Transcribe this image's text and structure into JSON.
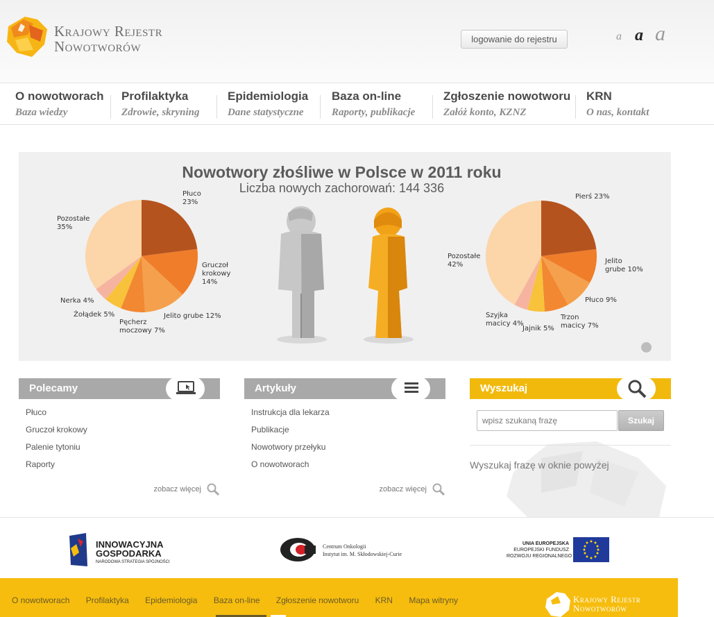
{
  "brand": {
    "line1": "Krajowy Rejestr",
    "line2": "Nowotworów"
  },
  "header": {
    "login_label": "logowanie do rejestru",
    "font_sizes": [
      "a",
      "a",
      "a"
    ]
  },
  "nav": [
    {
      "title": "O nowotworach",
      "subtitle": "Baza wiedzy"
    },
    {
      "title": "Profilaktyka",
      "subtitle": "Zdrowie, skryning"
    },
    {
      "title": "Epidemiologia",
      "subtitle": "Dane statystyczne"
    },
    {
      "title": "Baza on-line",
      "subtitle": "Raporty, publikacje"
    },
    {
      "title": "Zgłoszenie nowotworu",
      "subtitle": "Załóż konto, KZNZ"
    },
    {
      "title": "KRN",
      "subtitle": "O nas, kontakt"
    }
  ],
  "banner": {
    "title": "Nowotwory złośliwe w Polsce w 2011 roku",
    "subtitle": "Liczba nowych zachorowań: 144 336"
  },
  "chart_data": [
    {
      "type": "pie",
      "title": "",
      "categories": [
        "Płuco",
        "Gruczoł krokowy",
        "Jelito grube",
        "Pęcherz moczowy",
        "Żołądek",
        "Nerka",
        "Pozostałe"
      ],
      "values": [
        23,
        14,
        12,
        7,
        5,
        4,
        35
      ],
      "labels": [
        "Płuco\n23%",
        "Gruczoł\nkrokowy\n14%",
        "Jelito grube 12%",
        "Pęcherz\nmoczowy 7%",
        "Żołądek 5%",
        "Nerka 4%",
        "Pozostałe\n35%"
      ],
      "colors": [
        "#b5531f",
        "#ef7d2a",
        "#f5a04c",
        "#f28832",
        "#f8c23b",
        "#f6b4a0",
        "#fcd5a8"
      ]
    },
    {
      "type": "pie",
      "title": "",
      "categories": [
        "Pierś",
        "Jelito grube",
        "Płuco",
        "Trzon macicy",
        "Jajnik",
        "Szyjka macicy",
        "Pozostałe"
      ],
      "values": [
        23,
        10,
        9,
        7,
        5,
        4,
        42
      ],
      "labels": [
        "Pierś 23%",
        "Jelito\ngrube 10%",
        "Płuco 9%",
        "Trzon\nmacicy 7%",
        "Jajnik 5%",
        "Szyjka\nmacicy 4%",
        "Pozostałe\n42%"
      ],
      "colors": [
        "#b5531f",
        "#ef7d2a",
        "#f5a04c",
        "#f28832",
        "#f8c23b",
        "#f6b4a0",
        "#fcd5a8"
      ]
    }
  ],
  "polecamy": {
    "title": "Polecamy",
    "items": [
      "Płuco",
      "Gruczoł krokowy",
      "Palenie tytoniu",
      "Raporty"
    ],
    "more": "zobacz więcej"
  },
  "artykuly": {
    "title": "Artykuły",
    "items": [
      "Instrukcja dla lekarza",
      "Publikacje",
      "Nowotwory przełyku",
      "O nowotworach"
    ],
    "more": "zobacz więcej"
  },
  "search": {
    "title": "Wyszukaj",
    "placeholder": "wpisz szukaną frazę",
    "button": "Szukaj",
    "hint": "Wyszukaj frazę w oknie powyżej"
  },
  "partners": {
    "innowacyjna": {
      "line1": "INNOWACYJNA",
      "line2": "GOSPODARKA",
      "line3": "NARODOWA STRATEGIA SPÓJNOŚCI"
    },
    "centrum": {
      "line1": "Centrum Onkologii",
      "line2": "Instytut im. M. Skłodowskiej-Curie"
    },
    "ue": {
      "line1": "UNIA EUROPEJSKA",
      "line2": "EUROPEJSKI FUNDUSZ",
      "line3": "ROZWOJU REGIONALNEGO"
    }
  },
  "footer": {
    "links": [
      "O nowotworach",
      "Profilaktyka",
      "Epidemiologia",
      "Baza on-line",
      "Zgłoszenie nowotworu",
      "KRN",
      "Mapa witryny"
    ]
  },
  "colors": {
    "accent": "#f6bd0e",
    "gray_header": "#a9a9a9",
    "brand_orange": "#f29a1d"
  }
}
